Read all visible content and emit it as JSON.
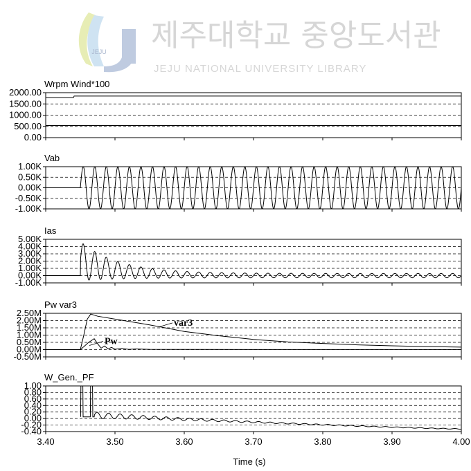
{
  "watermark": {
    "korean": "제주대학교 중앙도서관",
    "english": "JEJU NATIONAL UNIVERSITY LIBRARY",
    "logo_text": "JEJU"
  },
  "colors": {
    "trace": "#000000",
    "grid": "#000000",
    "watermark": "#d6d6d6"
  },
  "x_axis": {
    "label": "Time (s)",
    "range": [
      3.4,
      4.0
    ],
    "ticks": [
      3.4,
      3.5,
      3.6,
      3.7,
      3.8,
      3.9,
      4.0
    ],
    "tick_labels": [
      "3.40",
      "3.50",
      "3.60",
      "3.70",
      "3.80",
      "3.90",
      "4.00"
    ]
  },
  "chart_data": [
    {
      "type": "line",
      "title": "Wrpm   Wind*100",
      "ylim": [
        0,
        2000
      ],
      "yticks": [
        0,
        500,
        1000,
        1500,
        2000
      ],
      "ytick_labels": [
        "0.00",
        "500.00",
        "1000.00",
        "1500.00",
        "2000.00"
      ],
      "grid": "horizontal dashed",
      "series": [
        {
          "name": "Wrpm",
          "x": [
            3.4,
            3.44,
            3.441,
            4.0
          ],
          "y": [
            1780,
            1780,
            1850,
            1850
          ]
        },
        {
          "name": "Wind*100",
          "x": [
            3.4,
            4.0
          ],
          "y": [
            540,
            540
          ]
        }
      ]
    },
    {
      "type": "line",
      "title": "Vab",
      "ylim": [
        -1000,
        1000
      ],
      "yticks": [
        -1000,
        -500,
        0,
        500,
        1000
      ],
      "ytick_labels": [
        "-1.00K",
        "-0.50K",
        "0.00K",
        "0.50K",
        "1.00K"
      ],
      "grid": "horizontal dashed",
      "series": [
        {
          "name": "Vab",
          "waveform": "sine",
          "before_value": 0,
          "start_time": 3.45,
          "frequency_hz": 60,
          "amplitude": 1000,
          "offset": 0
        }
      ]
    },
    {
      "type": "line",
      "title": "Ias",
      "ylim": [
        -1000,
        5000
      ],
      "yticks": [
        -1000,
        0,
        1000,
        2000,
        3000,
        4000,
        5000
      ],
      "ytick_labels": [
        "-1.00K",
        "0.00K",
        "1.00K",
        "2.00K",
        "3.00K",
        "4.00K",
        "5.00K"
      ],
      "grid": "horizontal dashed",
      "series": [
        {
          "name": "Ias",
          "waveform": "decaying_sine",
          "before_value": 0,
          "start_time": 3.45,
          "frequency_hz": 60,
          "amplitude_start": 2700,
          "amplitude_end": 300,
          "offset_start": 2000,
          "offset_end": 0,
          "decay_tau": 0.055
        }
      ]
    },
    {
      "type": "line",
      "title": "Pw   var3",
      "ylim": [
        -500000,
        2500000
      ],
      "yticks": [
        -500000,
        0,
        500000,
        1000000,
        1500000,
        2000000,
        2500000
      ],
      "ytick_labels": [
        "-0.50M",
        "0.00M",
        "0.50M",
        "1.00M",
        "1.50M",
        "2.00M",
        "2.50M"
      ],
      "grid": "horizontal dashed",
      "annotations": [
        {
          "text": "var3",
          "x": 3.585,
          "y": 1650000
        },
        {
          "text": "Pw",
          "x": 3.485,
          "y": 380000
        }
      ],
      "series": [
        {
          "name": "var3",
          "x": [
            3.4,
            3.45,
            3.455,
            3.46,
            3.465,
            3.475,
            3.5,
            3.55,
            3.6,
            3.65,
            3.7,
            3.75,
            3.8,
            3.85,
            3.9,
            3.95,
            4.0
          ],
          "y": [
            0,
            0,
            1000000,
            2100000,
            2450000,
            2300000,
            2100000,
            1700000,
            1250000,
            950000,
            700000,
            530000,
            420000,
            330000,
            260000,
            210000,
            170000
          ]
        },
        {
          "name": "Pw",
          "x": [
            3.4,
            3.45,
            3.455,
            3.462,
            3.47,
            3.475,
            3.48,
            3.485,
            3.49,
            3.495,
            3.5,
            3.51,
            3.52,
            3.53,
            3.55,
            3.6,
            3.7,
            3.8,
            3.9,
            4.0
          ],
          "y": [
            0,
            0,
            200000,
            500000,
            750000,
            400000,
            100000,
            250000,
            50000,
            150000,
            30000,
            80000,
            20000,
            50000,
            20000,
            10000,
            5000,
            5000,
            5000,
            5000
          ]
        }
      ]
    },
    {
      "type": "line",
      "title": "W_Gen._PF",
      "ylim": [
        -0.4,
        1.0
      ],
      "yticks": [
        -0.4,
        -0.2,
        0.0,
        0.2,
        0.4,
        0.6,
        0.8,
        1.0
      ],
      "ytick_labels": [
        "-0.40",
        "-0.20",
        "0.00",
        "0.20",
        "0.40",
        "0.60",
        "0.80",
        "1.00"
      ],
      "grid": "horizontal dashed",
      "series": [
        {
          "name": "W_Gen._PF",
          "waveform": "pf",
          "start_time": 3.45,
          "spike_times": [
            3.452,
            3.466
          ],
          "after_start": 3.47,
          "frequency_hz": 60,
          "amplitude_start": 0.1,
          "amplitude_end": 0.01,
          "level_start": 0.1,
          "level_end": -0.32,
          "decay_tau": 0.12
        }
      ]
    }
  ]
}
